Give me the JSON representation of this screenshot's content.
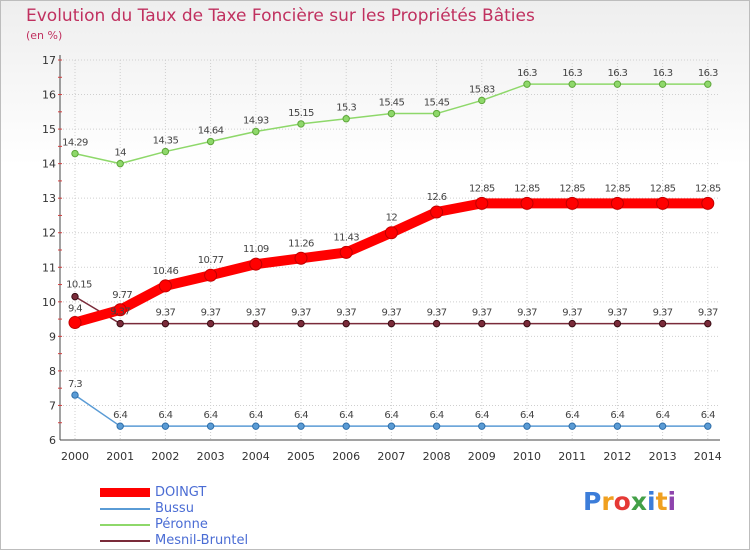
{
  "title": "Evolution du Taux de Taxe Foncière sur les Propriétés Bâties",
  "subtitle": "(en %)",
  "logo_text": "Proxiti",
  "colors": {
    "title": "#c0305f",
    "grid": "#cfcfcf",
    "doingt": "#ff0000",
    "bussu": "#5a9bd5",
    "peronne": "#8ed86a",
    "mesnil": "#7a2b3a",
    "legend_text": "#4a6cd4"
  },
  "chart_data": {
    "type": "line",
    "title": "Evolution du Taux de Taxe Foncière sur les Propriétés Bâties",
    "ylabel": "(en %)",
    "xlabel": "",
    "ylim": [
      6,
      17
    ],
    "yticks": [
      "6",
      "7",
      "8",
      "9",
      "10",
      "11",
      "12",
      "13",
      "14",
      "15",
      "16",
      "17"
    ],
    "categories": [
      "2000",
      "2001",
      "2002",
      "2003",
      "2004",
      "2005",
      "2006",
      "2007",
      "2008",
      "2009",
      "2010",
      "2011",
      "2012",
      "2013",
      "2014"
    ],
    "grid": true,
    "legend_position": "bottom-left",
    "series": [
      {
        "key": "peronne",
        "name": "Péronne",
        "values": [
          14.29,
          14,
          14.35,
          14.64,
          14.93,
          15.15,
          15.3,
          15.45,
          15.45,
          15.83,
          16.3,
          16.3,
          16.3,
          16.3,
          16.3
        ],
        "labels": [
          "14.29",
          "14",
          "14.35",
          "14.64",
          "14.93",
          "15.15",
          "15.3",
          "15.45",
          "15.45",
          "15.83",
          "16.3",
          "16.3",
          "16.3",
          "16.3",
          "16.3"
        ]
      },
      {
        "key": "mesnil",
        "name": "Mesnil-Bruntel",
        "values": [
          10.15,
          9.37,
          9.37,
          9.37,
          9.37,
          9.37,
          9.37,
          9.37,
          9.37,
          9.37,
          9.37,
          9.37,
          9.37,
          9.37,
          9.37
        ],
        "labels": [
          "10.15",
          "9.37",
          "9.37",
          "9.37",
          "9.37",
          "9.37",
          "9.37",
          "9.37",
          "9.37",
          "9.37",
          "9.37",
          "9.37",
          "9.37",
          "9.37",
          "9.37"
        ]
      },
      {
        "key": "bussu",
        "name": "Bussu",
        "values": [
          7.3,
          6.4,
          6.4,
          6.4,
          6.4,
          6.4,
          6.4,
          6.4,
          6.4,
          6.4,
          6.4,
          6.4,
          6.4,
          6.4,
          6.4
        ],
        "labels": [
          "7.3",
          "6.4",
          "6.4",
          "6.4",
          "6.4",
          "6.4",
          "6.4",
          "6.4",
          "6.4",
          "6.4",
          "6.4",
          "6.4",
          "6.4",
          "6.4",
          "6.4"
        ]
      },
      {
        "key": "doingt",
        "name": "DOINGT",
        "values": [
          9.4,
          9.77,
          10.46,
          10.77,
          11.09,
          11.26,
          11.43,
          12,
          12.6,
          12.85,
          12.85,
          12.85,
          12.85,
          12.85,
          12.85
        ],
        "labels": [
          "9.4",
          "9.77",
          "10.46",
          "10.77",
          "11.09",
          "11.26",
          "11.43",
          "12",
          "12.6",
          "12.85",
          "12.85",
          "12.85",
          "12.85",
          "12.85",
          "12.85"
        ]
      }
    ]
  },
  "legend": [
    {
      "key": "doingt",
      "label": "DOINGT"
    },
    {
      "key": "bussu",
      "label": "Bussu"
    },
    {
      "key": "peronne",
      "label": "Péronne"
    },
    {
      "key": "mesnil",
      "label": "Mesnil-Bruntel"
    }
  ]
}
